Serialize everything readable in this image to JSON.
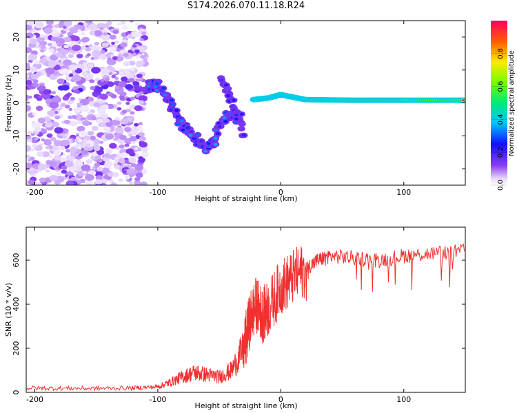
{
  "title": "S174.2026.070.11.18.R24",
  "chart_data": [
    {
      "type": "heatmap",
      "xlabel": "Height of straight line (km)",
      "ylabel": "Frequency (Hz)",
      "xlim": [
        -207,
        150
      ],
      "ylim": [
        -25,
        25
      ],
      "xticks": [
        -200,
        -100,
        0,
        100
      ],
      "yticks": [
        -20,
        -10,
        0,
        10,
        20
      ],
      "colorbar": {
        "label": "Normalized spectral amplitude",
        "range": [
          0,
          1
        ],
        "ticks": [
          0.0,
          0.2,
          0.4,
          0.6,
          0.8
        ]
      },
      "features": [
        {
          "name": "scattered-noise",
          "x_range": [
            -207,
            -110
          ],
          "freq_range": [
            -25,
            25
          ],
          "amplitude": 0.1
        },
        {
          "name": "descending-trace",
          "x": [
            -108,
            -100,
            -90,
            -80,
            -70,
            -60,
            -50,
            -40,
            -32
          ],
          "freq": [
            5,
            6,
            0,
            -7,
            -10,
            -15,
            -8,
            -3,
            -5
          ],
          "amplitude": 0.3
        },
        {
          "name": "fast-trace",
          "x": [
            -48,
            -40,
            -30
          ],
          "freq": [
            7,
            0,
            -10
          ],
          "amplitude": 0.2
        },
        {
          "name": "carrier-line",
          "x": [
            -22,
            -10,
            0,
            20,
            60,
            100,
            150
          ],
          "freq": [
            1,
            1.5,
            2.5,
            1,
            0.8,
            0.8,
            0.8
          ],
          "amplitude": 1.0
        }
      ]
    },
    {
      "type": "line",
      "xlabel": "Height of straight line (km)",
      "ylabel": "SNR (10 * v/v)",
      "xlim": [
        -207,
        150
      ],
      "ylim": [
        0,
        750
      ],
      "xticks": [
        -200,
        -100,
        0,
        100
      ],
      "yticks": [
        0,
        200,
        400,
        600
      ],
      "color": "#f03030",
      "series": [
        {
          "name": "SNR",
          "x": [
            -207,
            -180,
            -150,
            -120,
            -100,
            -90,
            -80,
            -70,
            -60,
            -50,
            -40,
            -30,
            -25,
            -20,
            -15,
            -10,
            0,
            10,
            20,
            30,
            40,
            60,
            80,
            100,
            120,
            150
          ],
          "values": [
            20,
            18,
            18,
            20,
            25,
            45,
            70,
            90,
            80,
            70,
            100,
            200,
            330,
            400,
            350,
            380,
            480,
            520,
            560,
            600,
            620,
            610,
            600,
            620,
            630,
            640
          ]
        }
      ]
    }
  ]
}
